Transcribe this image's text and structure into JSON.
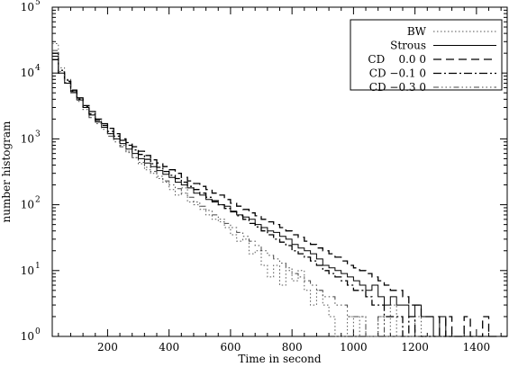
{
  "chart_data": {
    "type": "line",
    "step": true,
    "title": "",
    "xlabel": "Time in second",
    "ylabel": "number histogram",
    "xlim": [
      20,
      1500
    ],
    "ylim": [
      1,
      100000
    ],
    "yscale": "log",
    "x_ticks": [
      200,
      400,
      600,
      800,
      1000,
      1200,
      1400
    ],
    "y_ticks": [
      {
        "value": 1,
        "label": "10",
        "exp": "0"
      },
      {
        "value": 10,
        "label": "10",
        "exp": "1"
      },
      {
        "value": 100,
        "label": "10",
        "exp": "2"
      },
      {
        "value": 1000,
        "label": "10",
        "exp": "3"
      },
      {
        "value": 10000,
        "label": "10",
        "exp": "4"
      },
      {
        "value": 100000,
        "label": "10",
        "exp": "5"
      }
    ],
    "grid": false,
    "legend_position": "top-right",
    "series": [
      {
        "name": "BW",
        "dash": "1.5,2.5",
        "stroke_width": 1,
        "color": "#555555",
        "x": [
          20,
          40,
          60,
          80,
          100,
          120,
          140,
          160,
          180,
          200,
          220,
          240,
          260,
          280,
          300,
          320,
          340,
          360,
          380,
          400,
          420,
          440,
          460,
          480,
          500,
          520,
          540,
          560,
          580,
          600,
          620,
          640,
          660,
          680,
          700,
          720,
          740,
          760,
          780,
          800,
          820,
          840,
          860,
          880,
          900,
          920,
          940,
          960,
          980,
          1000,
          1020,
          1040,
          1060,
          1080,
          1100,
          1120,
          1140,
          1160,
          1180,
          1200,
          1220,
          1240,
          1260,
          1280,
          1300
        ],
        "values": [
          28000,
          12000,
          8000,
          5500,
          4000,
          3000,
          2300,
          1900,
          1500,
          1200,
          1000,
          800,
          650,
          520,
          420,
          340,
          300,
          250,
          220,
          170,
          140,
          180,
          110,
          100,
          85,
          70,
          60,
          55,
          45,
          35,
          28,
          30,
          18,
          20,
          12,
          8,
          12,
          6,
          10,
          7,
          10,
          5,
          3,
          5,
          3,
          2,
          1,
          1,
          2,
          1,
          2,
          1,
          1,
          2,
          1,
          3,
          1,
          1,
          1,
          2,
          1,
          1,
          1,
          1,
          1
        ]
      },
      {
        "name": "Strous",
        "dash": "",
        "stroke_width": 1,
        "color": "#000000",
        "x": [
          20,
          40,
          60,
          80,
          100,
          120,
          140,
          160,
          180,
          200,
          220,
          240,
          260,
          280,
          300,
          320,
          340,
          360,
          380,
          400,
          420,
          440,
          460,
          480,
          500,
          520,
          540,
          560,
          580,
          600,
          620,
          640,
          660,
          680,
          700,
          720,
          740,
          760,
          780,
          800,
          820,
          840,
          860,
          880,
          900,
          920,
          940,
          960,
          980,
          1000,
          1020,
          1040,
          1060,
          1080,
          1100,
          1120,
          1140,
          1160,
          1180,
          1200,
          1220,
          1240,
          1260,
          1280,
          1300,
          1320,
          1340,
          1360
        ],
        "values": [
          18000,
          10000,
          7000,
          5200,
          3900,
          3000,
          2300,
          1800,
          1500,
          1200,
          1000,
          850,
          700,
          600,
          500,
          430,
          380,
          330,
          290,
          260,
          220,
          200,
          180,
          150,
          140,
          120,
          110,
          100,
          95,
          80,
          70,
          65,
          60,
          50,
          45,
          40,
          38,
          33,
          30,
          25,
          22,
          20,
          18,
          15,
          12,
          11,
          10,
          9,
          8,
          7,
          6,
          5,
          6,
          4,
          3,
          4,
          3,
          3,
          2,
          3,
          2,
          2,
          1,
          2,
          1,
          1,
          1,
          1
        ]
      },
      {
        "name": "CD    0.0 0",
        "dash": "9,5",
        "stroke_width": 1.3,
        "color": "#000000",
        "x": [
          20,
          40,
          60,
          80,
          100,
          120,
          140,
          160,
          180,
          200,
          220,
          240,
          260,
          280,
          300,
          320,
          340,
          360,
          380,
          400,
          420,
          440,
          460,
          480,
          500,
          520,
          540,
          560,
          580,
          600,
          620,
          640,
          660,
          680,
          700,
          720,
          740,
          760,
          780,
          800,
          820,
          840,
          860,
          880,
          900,
          920,
          940,
          960,
          980,
          1000,
          1020,
          1040,
          1060,
          1080,
          1100,
          1120,
          1140,
          1160,
          1180,
          1200,
          1220,
          1240,
          1260,
          1280,
          1300,
          1320,
          1340,
          1360,
          1380,
          1400,
          1420,
          1440,
          1460,
          1480
        ],
        "values": [
          16000,
          10000,
          7500,
          5500,
          4200,
          3200,
          2600,
          2000,
          1700,
          1450,
          1200,
          1000,
          880,
          760,
          650,
          560,
          480,
          430,
          380,
          340,
          300,
          260,
          230,
          210,
          190,
          170,
          150,
          140,
          120,
          105,
          95,
          85,
          75,
          68,
          60,
          55,
          50,
          45,
          40,
          35,
          32,
          28,
          25,
          22,
          20,
          18,
          16,
          14,
          12,
          11,
          10,
          9,
          8,
          7,
          6,
          5,
          5,
          4,
          3,
          3,
          2,
          2,
          2,
          1,
          2,
          1,
          1,
          2,
          1,
          1,
          2,
          1,
          1,
          1
        ]
      },
      {
        "name": "CD −0.1 0",
        "dash": "9,3,2,3",
        "stroke_width": 1.3,
        "color": "#000000",
        "x": [
          20,
          40,
          60,
          80,
          100,
          120,
          140,
          160,
          180,
          200,
          220,
          240,
          260,
          280,
          300,
          320,
          340,
          360,
          380,
          400,
          420,
          440,
          460,
          480,
          500,
          520,
          540,
          560,
          580,
          600,
          620,
          640,
          660,
          680,
          700,
          720,
          740,
          760,
          780,
          800,
          820,
          840,
          860,
          880,
          900,
          920,
          940,
          960,
          980,
          1000,
          1020,
          1040,
          1060,
          1080,
          1100,
          1120,
          1140,
          1160,
          1180,
          1200,
          1220,
          1240,
          1260,
          1280,
          1300
        ],
        "values": [
          20000,
          11000,
          7800,
          5400,
          4000,
          3100,
          2400,
          1900,
          1600,
          1300,
          1100,
          950,
          800,
          680,
          580,
          490,
          420,
          370,
          320,
          280,
          250,
          220,
          190,
          170,
          150,
          130,
          115,
          100,
          88,
          78,
          68,
          60,
          52,
          46,
          40,
          35,
          30,
          27,
          24,
          20,
          18,
          16,
          14,
          12,
          10,
          9,
          8,
          7,
          6,
          5,
          5,
          4,
          3,
          3,
          2,
          2,
          2,
          1,
          2,
          1,
          1,
          1,
          1,
          1,
          1
        ]
      },
      {
        "name": "CD −0.3 0",
        "dash": "6,3,1.5,3,1.5,3,1.5,3",
        "stroke_width": 1,
        "color": "#444444",
        "x": [
          20,
          40,
          60,
          80,
          100,
          120,
          140,
          160,
          180,
          200,
          220,
          240,
          260,
          280,
          300,
          320,
          340,
          360,
          380,
          400,
          420,
          440,
          460,
          480,
          500,
          520,
          540,
          560,
          580,
          600,
          620,
          640,
          660,
          680,
          700,
          720,
          740,
          760,
          780,
          800,
          820,
          840,
          860,
          880,
          900,
          920,
          940,
          960,
          980,
          1000,
          1020,
          1040,
          1060,
          1080,
          1100,
          1120,
          1140,
          1160,
          1180,
          1200,
          1220,
          1240,
          1260,
          1280
        ],
        "values": [
          22000,
          10500,
          7200,
          5000,
          3700,
          2800,
          2100,
          1700,
          1400,
          1100,
          900,
          760,
          620,
          520,
          440,
          370,
          320,
          270,
          230,
          200,
          175,
          150,
          130,
          110,
          95,
          82,
          70,
          60,
          52,
          45,
          38,
          33,
          28,
          24,
          20,
          17,
          15,
          13,
          11,
          9,
          8,
          7,
          6,
          5,
          4,
          4,
          3,
          3,
          2,
          2,
          2,
          1,
          1,
          2,
          1,
          1,
          1,
          1,
          1,
          1,
          1,
          1,
          1,
          1
        ]
      }
    ]
  }
}
